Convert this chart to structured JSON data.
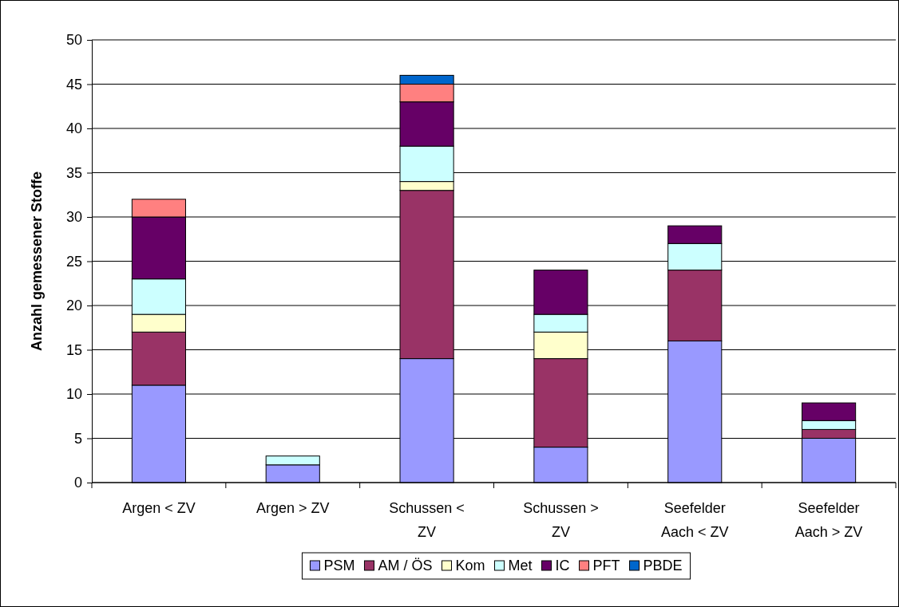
{
  "chart_data": {
    "type": "bar",
    "stacked": true,
    "ylabel": "Anzahl gemessener Stoffe",
    "categories": [
      "Argen < ZV",
      "Argen > ZV",
      "Schussen < ZV",
      "Schussen > ZV",
      "Seefelder Aach < ZV",
      "Seefelder Aach > ZV"
    ],
    "series": [
      {
        "name": "PSM",
        "color": "#9999ff",
        "values": [
          11,
          2,
          14,
          4,
          16,
          5
        ]
      },
      {
        "name": "AM / ÖS",
        "color": "#993366",
        "values": [
          6,
          0,
          19,
          10,
          8,
          1
        ]
      },
      {
        "name": "Kom",
        "color": "#ffffcc",
        "values": [
          2,
          0,
          1,
          3,
          0,
          0
        ]
      },
      {
        "name": "Met",
        "color": "#ccffff",
        "values": [
          4,
          1,
          4,
          2,
          3,
          1
        ]
      },
      {
        "name": "IC",
        "color": "#660066",
        "values": [
          7,
          0,
          5,
          5,
          2,
          2
        ]
      },
      {
        "name": "PFT",
        "color": "#ff8080",
        "values": [
          2,
          0,
          2,
          0,
          0,
          0
        ]
      },
      {
        "name": "PBDE",
        "color": "#0066cc",
        "values": [
          0,
          0,
          1,
          0,
          0,
          0
        ]
      }
    ],
    "ylim": [
      0,
      50
    ],
    "yticks": [
      0,
      5,
      10,
      15,
      20,
      25,
      30,
      35,
      40,
      45,
      50
    ],
    "grid": "y",
    "legend": "bottom"
  }
}
